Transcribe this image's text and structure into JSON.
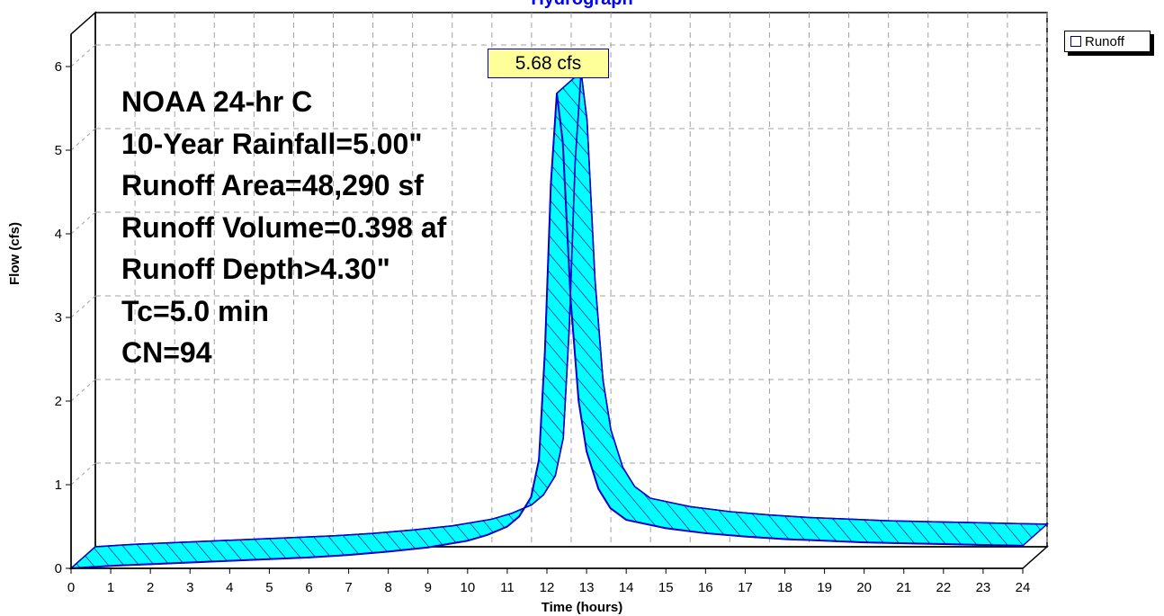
{
  "chart_data": {
    "type": "area",
    "title": "Hydrograph",
    "xlabel": "Time  (hours)",
    "ylabel": "Flow  (cfs)",
    "xlim": [
      0,
      24
    ],
    "ylim": [
      0,
      6.5
    ],
    "x_ticks": [
      0,
      1,
      2,
      3,
      4,
      5,
      6,
      7,
      8,
      9,
      10,
      11,
      12,
      13,
      14,
      15,
      16,
      17,
      18,
      19,
      20,
      21,
      22,
      23,
      24
    ],
    "y_ticks": [
      0,
      1,
      2,
      3,
      4,
      5,
      6
    ],
    "grid": true,
    "legend_position": "top-right",
    "series": [
      {
        "name": "Runoff",
        "x": [
          0,
          1,
          2,
          3,
          4,
          5,
          6,
          7,
          8,
          9,
          10,
          10.5,
          11,
          11.3,
          11.6,
          11.8,
          11.95,
          12.1,
          12.25,
          12.4,
          12.6,
          12.8,
          13,
          13.3,
          13.6,
          14,
          15,
          16,
          17,
          18,
          19,
          20,
          21,
          22,
          23,
          24
        ],
        "y": [
          0,
          0.03,
          0.05,
          0.07,
          0.09,
          0.11,
          0.13,
          0.16,
          0.2,
          0.25,
          0.33,
          0.4,
          0.5,
          0.62,
          0.85,
          1.3,
          2.6,
          4.6,
          5.68,
          5.1,
          3.2,
          2.0,
          1.4,
          0.95,
          0.72,
          0.58,
          0.48,
          0.42,
          0.38,
          0.35,
          0.33,
          0.31,
          0.3,
          0.29,
          0.28,
          0.27
        ]
      }
    ],
    "peak_label": "5.68 cfs",
    "annotations": [
      "NOAA 24-hr C",
      "10-Year Rainfall=5.00\"",
      "Runoff Area=48,290 sf",
      "Runoff Volume=0.398 af",
      "Runoff Depth>4.30\"",
      "Tc=5.0 min",
      "CN=94"
    ]
  },
  "colors": {
    "fill": "#00ffff",
    "fill_dark": "#00b0b8",
    "outline": "#0000cc",
    "hatch": "#0000aa",
    "grid": "#a0a0a0",
    "title": "#0000ff",
    "callout_bg": "#ffff99"
  }
}
